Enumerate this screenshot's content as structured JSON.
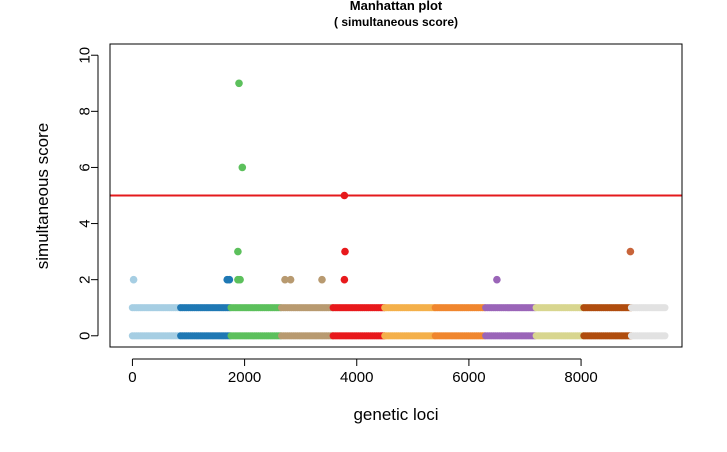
{
  "chart_data": {
    "type": "scatter",
    "title": "Manhattan plot",
    "subtitle": "( simultaneous score)",
    "xlabel": "genetic loci",
    "ylabel": "simultaneous score",
    "xlim": [
      -400,
      9800
    ],
    "ylim": [
      -0.4,
      10.4
    ],
    "xticks": [
      0,
      2000,
      4000,
      6000,
      8000
    ],
    "yticks": [
      0,
      2,
      4,
      6,
      8,
      10
    ],
    "threshold": {
      "y": 5,
      "color": "#e41a1c"
    },
    "grid": false,
    "chromosome_bands": [
      {
        "start": 0,
        "end": 860,
        "color": "#a6cee3"
      },
      {
        "start": 860,
        "end": 1760,
        "color": "#1f78b4"
      },
      {
        "start": 1760,
        "end": 2660,
        "color": "#5cc05c"
      },
      {
        "start": 2660,
        "end": 3580,
        "color": "#b89a70"
      },
      {
        "start": 3580,
        "end": 4500,
        "color": "#e8191c"
      },
      {
        "start": 4500,
        "end": 5400,
        "color": "#f4b04a"
      },
      {
        "start": 5400,
        "end": 6300,
        "color": "#f0862e"
      },
      {
        "start": 6300,
        "end": 7200,
        "color": "#9a65b8"
      },
      {
        "start": 7200,
        "end": 8050,
        "color": "#d8d68f"
      },
      {
        "start": 8050,
        "end": 8900,
        "color": "#b04d0e"
      },
      {
        "start": 8900,
        "end": 9500,
        "color": "#e2e2e2"
      }
    ],
    "score_levels": [
      0,
      1
    ],
    "highlights": [
      {
        "x": 20,
        "y": 2,
        "color": "#a6cee3"
      },
      {
        "x": 1690,
        "y": 2,
        "color": "#1f78b4"
      },
      {
        "x": 1730,
        "y": 2,
        "color": "#1f78b4"
      },
      {
        "x": 1900,
        "y": 9,
        "color": "#5cc05c"
      },
      {
        "x": 1960,
        "y": 6,
        "color": "#5cc05c"
      },
      {
        "x": 1880,
        "y": 3,
        "color": "#5cc05c"
      },
      {
        "x": 1880,
        "y": 2,
        "color": "#5cc05c"
      },
      {
        "x": 1920,
        "y": 2,
        "color": "#5cc05c"
      },
      {
        "x": 2720,
        "y": 2,
        "color": "#b89a70"
      },
      {
        "x": 2820,
        "y": 2,
        "color": "#b89a70"
      },
      {
        "x": 3380,
        "y": 2,
        "color": "#b89a70"
      },
      {
        "x": 3780,
        "y": 5,
        "color": "#e8191c"
      },
      {
        "x": 3790,
        "y": 3,
        "color": "#e8191c"
      },
      {
        "x": 3780,
        "y": 2,
        "color": "#e8191c"
      },
      {
        "x": 6500,
        "y": 2,
        "color": "#9a65b8"
      },
      {
        "x": 8880,
        "y": 3,
        "color": "#c8643a"
      }
    ]
  }
}
